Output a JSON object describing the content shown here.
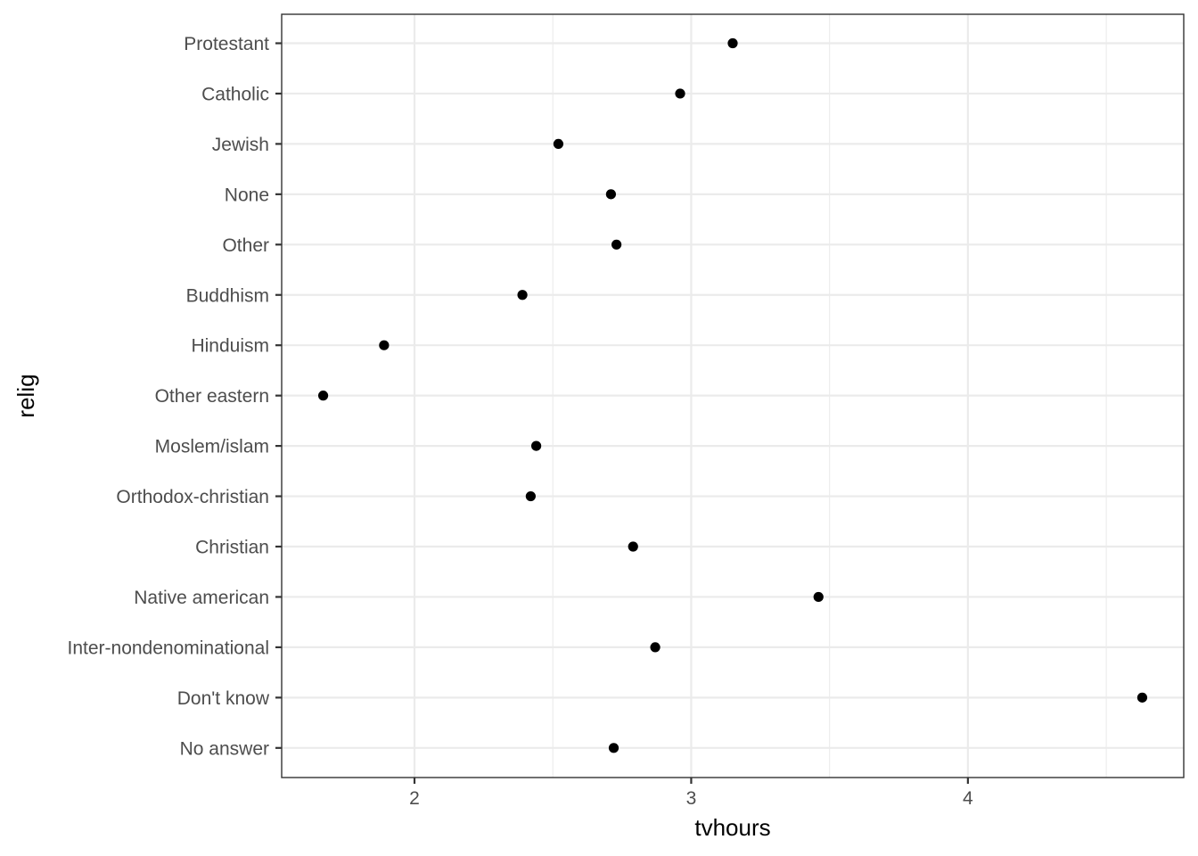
{
  "chart_data": {
    "type": "scatter",
    "title": "",
    "xlabel": "tvhours",
    "ylabel": "relig",
    "xlim": [
      1.52,
      4.78
    ],
    "x_ticks": [
      {
        "value": 2,
        "label": "2"
      },
      {
        "value": 3,
        "label": "3"
      },
      {
        "value": 4,
        "label": "4"
      }
    ],
    "x_minor_ticks": [
      2.5,
      3.5,
      4.5
    ],
    "grid": true,
    "legend": "none",
    "colors": {
      "point": "#000000",
      "grid": "#ebebeb",
      "panel_border": "#333333",
      "tick_text": "#4d4d4d"
    },
    "categories": [
      "Protestant",
      "Catholic",
      "Jewish",
      "None",
      "Other",
      "Buddhism",
      "Hinduism",
      "Other eastern",
      "Moslem/islam",
      "Orthodox-christian",
      "Christian",
      "Native american",
      "Inter-nondenominational",
      "Don't know",
      "No answer"
    ],
    "values": [
      3.15,
      2.96,
      2.52,
      2.71,
      2.73,
      2.39,
      1.89,
      1.67,
      2.44,
      2.42,
      2.79,
      3.46,
      2.87,
      4.63,
      2.72
    ]
  }
}
